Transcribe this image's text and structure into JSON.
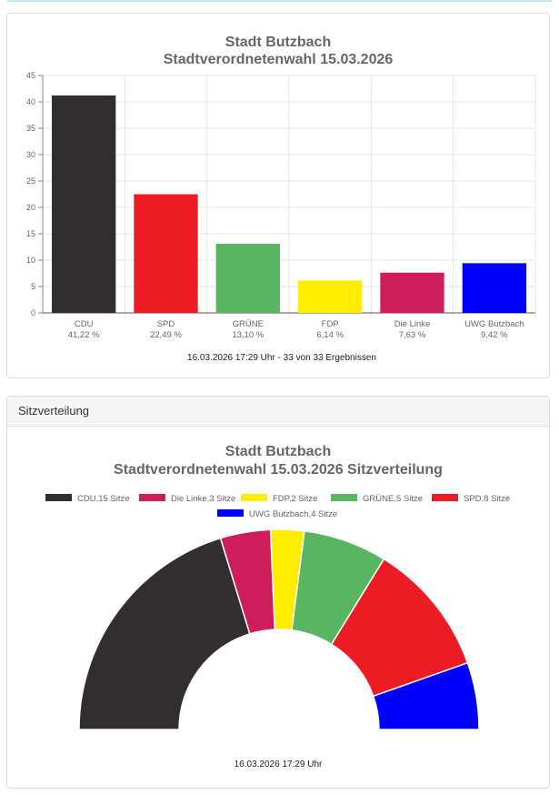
{
  "chart_data": [
    {
      "type": "bar",
      "title": "Stadt Butzbach",
      "subtitle": "Stadtverordnetenwahl 15.03.2026",
      "categories": [
        "CDU",
        "SPD",
        "GRÜNE",
        "FDP",
        "Die Linke",
        "UWG Butzbach"
      ],
      "category_sublabels": [
        "41,22 %",
        "22,49 %",
        "13,10 %",
        "6,14 %",
        "7,63 %",
        "9,42 %"
      ],
      "values": [
        41.22,
        22.49,
        13.1,
        6.14,
        7.63,
        9.42
      ],
      "colors": [
        "#302e2e",
        "#ed1c24",
        "#58b560",
        "#ffed00",
        "#cf1d5b",
        "#0000ff"
      ],
      "ylim": [
        0,
        45
      ],
      "yticks": [
        0,
        5,
        10,
        15,
        20,
        25,
        30,
        35,
        40,
        45
      ],
      "grid": true,
      "footer": "16.03.2026 17:29 Uhr - 33 von 33 Ergebnissen"
    },
    {
      "type": "pie",
      "variant": "semicircle",
      "title": "Stadt Butzbach",
      "subtitle": "Stadtverordnetenwahl 15.03.2026 Sitzverteilung",
      "legend_position": "top",
      "slices": [
        {
          "label": "CDU",
          "seats": 15,
          "legend": "CDU,15 Sitze",
          "color": "#302e2e"
        },
        {
          "label": "Die Linke",
          "seats": 3,
          "legend": "Die Linke,3 Sitze",
          "color": "#cf1d5b"
        },
        {
          "label": "FDP",
          "seats": 2,
          "legend": "FDP,2 Sitze",
          "color": "#ffed00"
        },
        {
          "label": "GRÜNE",
          "seats": 5,
          "legend": "GRÜNE,5 Sitze",
          "color": "#58b560"
        },
        {
          "label": "SPD",
          "seats": 8,
          "legend": "SPD,8 Sitze",
          "color": "#ed1c24"
        },
        {
          "label": "UWG Butzbach",
          "seats": 4,
          "legend": "UWG Butzbach,4 Sitze",
          "color": "#0000ff"
        }
      ],
      "footer": "16.03.2026 17:29 Uhr"
    }
  ],
  "seat_card": {
    "header": "Sitzverteilung"
  }
}
